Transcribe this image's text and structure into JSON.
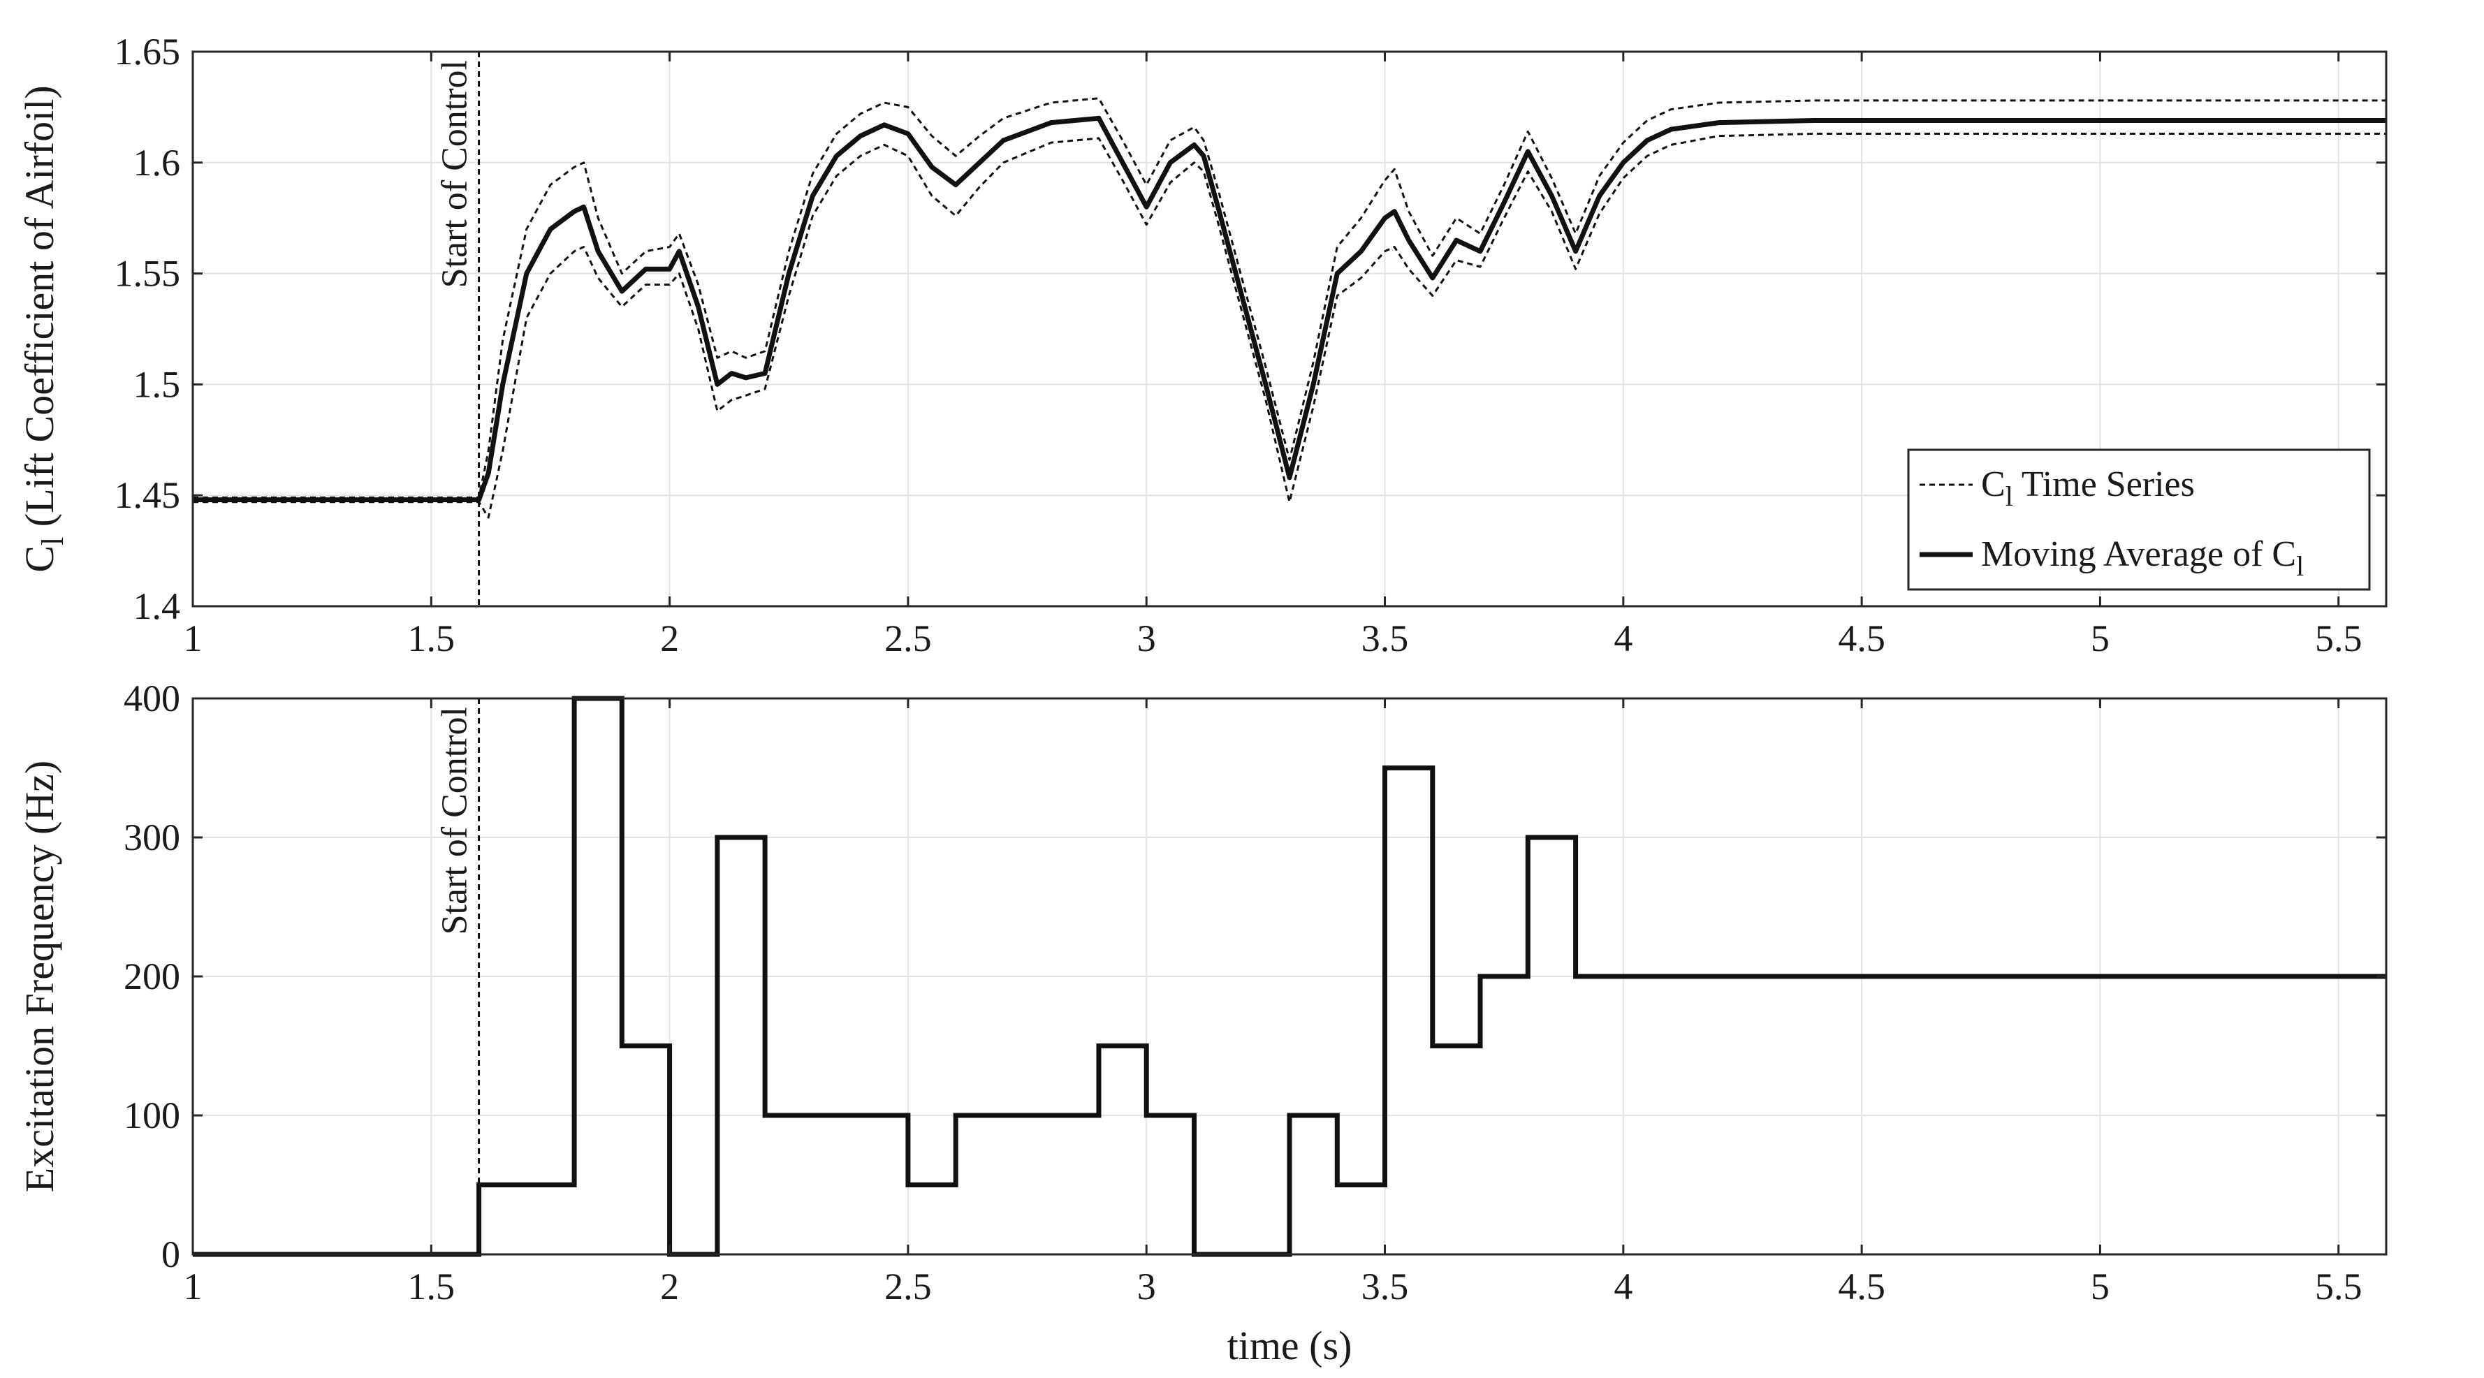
{
  "chart_data": [
    {
      "type": "line",
      "ylabel": "C",
      "ylabel_sub": "l",
      "ylabel_rest": " (Lift Coefficient of Airfoil)",
      "xlim": [
        1,
        5.6
      ],
      "ylim": [
        1.4,
        1.65
      ],
      "grid": true,
      "xticks": [
        1,
        1.5,
        2,
        2.5,
        3,
        3.5,
        4,
        4.5,
        5,
        5.5
      ],
      "yticks": [
        1.4,
        1.45,
        1.5,
        1.55,
        1.6,
        1.65
      ],
      "xtick_labels": [
        "1",
        "1.5",
        "2",
        "2.5",
        "3",
        "3.5",
        "4",
        "4.5",
        "5",
        "5.5"
      ],
      "ytick_labels": [
        "1.4",
        "1.45",
        "1.5",
        "1.55",
        "1.6",
        "1.65"
      ],
      "annotation": {
        "text": "Start of Control",
        "x": 1.6
      },
      "legend": {
        "placement": "bottom-right",
        "entries": [
          {
            "main": "C",
            "sub": "l",
            "rest": " Time Series",
            "style": "dashed"
          },
          {
            "main": "Moving Average of C",
            "sub": "l",
            "rest": "",
            "style": "solid"
          }
        ]
      },
      "series": [
        {
          "name": "Moving Average of C_l",
          "style": "solid",
          "x": [
            1.0,
            1.6,
            1.62,
            1.65,
            1.7,
            1.75,
            1.8,
            1.82,
            1.85,
            1.9,
            1.95,
            2.0,
            2.02,
            2.06,
            2.1,
            2.13,
            2.16,
            2.2,
            2.25,
            2.3,
            2.35,
            2.4,
            2.45,
            2.5,
            2.55,
            2.6,
            2.65,
            2.7,
            2.8,
            2.9,
            2.95,
            3.0,
            3.05,
            3.1,
            3.12,
            3.15,
            3.2,
            3.25,
            3.3,
            3.35,
            3.4,
            3.45,
            3.5,
            3.52,
            3.55,
            3.6,
            3.65,
            3.7,
            3.75,
            3.8,
            3.85,
            3.9,
            3.95,
            4.0,
            4.05,
            4.1,
            4.2,
            4.4,
            4.6,
            5.0,
            5.6
          ],
          "y": [
            1.448,
            1.448,
            1.46,
            1.5,
            1.55,
            1.57,
            1.578,
            1.58,
            1.56,
            1.542,
            1.552,
            1.552,
            1.56,
            1.535,
            1.5,
            1.505,
            1.503,
            1.505,
            1.55,
            1.585,
            1.603,
            1.612,
            1.617,
            1.613,
            1.598,
            1.59,
            1.6,
            1.61,
            1.618,
            1.62,
            1.6,
            1.58,
            1.6,
            1.608,
            1.603,
            1.58,
            1.54,
            1.5,
            1.458,
            1.5,
            1.55,
            1.56,
            1.575,
            1.578,
            1.565,
            1.548,
            1.565,
            1.56,
            1.582,
            1.605,
            1.585,
            1.56,
            1.585,
            1.6,
            1.61,
            1.615,
            1.618,
            1.619,
            1.619,
            1.619,
            1.619
          ]
        },
        {
          "name": "C_l Time Series (upper envelope)",
          "style": "dashed",
          "x": [
            1.0,
            1.6,
            1.62,
            1.65,
            1.7,
            1.75,
            1.8,
            1.82,
            1.85,
            1.9,
            1.95,
            2.0,
            2.02,
            2.06,
            2.1,
            2.13,
            2.16,
            2.2,
            2.25,
            2.3,
            2.35,
            2.4,
            2.45,
            2.5,
            2.55,
            2.6,
            2.65,
            2.7,
            2.8,
            2.9,
            2.95,
            3.0,
            3.05,
            3.1,
            3.12,
            3.15,
            3.2,
            3.25,
            3.3,
            3.35,
            3.4,
            3.45,
            3.5,
            3.52,
            3.55,
            3.6,
            3.65,
            3.7,
            3.75,
            3.8,
            3.85,
            3.9,
            3.95,
            4.0,
            4.05,
            4.1,
            4.2,
            4.4,
            4.6,
            5.0,
            5.6
          ],
          "y": [
            1.449,
            1.449,
            1.47,
            1.52,
            1.57,
            1.59,
            1.598,
            1.6,
            1.575,
            1.55,
            1.56,
            1.562,
            1.568,
            1.545,
            1.512,
            1.515,
            1.512,
            1.515,
            1.56,
            1.595,
            1.613,
            1.622,
            1.627,
            1.625,
            1.612,
            1.603,
            1.612,
            1.62,
            1.627,
            1.629,
            1.61,
            1.59,
            1.61,
            1.616,
            1.61,
            1.588,
            1.548,
            1.508,
            1.466,
            1.51,
            1.562,
            1.575,
            1.592,
            1.597,
            1.578,
            1.558,
            1.575,
            1.568,
            1.59,
            1.614,
            1.593,
            1.568,
            1.594,
            1.609,
            1.619,
            1.624,
            1.627,
            1.628,
            1.628,
            1.628,
            1.628
          ]
        },
        {
          "name": "C_l Time Series (lower envelope)",
          "style": "dashed",
          "x": [
            1.0,
            1.6,
            1.62,
            1.65,
            1.7,
            1.75,
            1.8,
            1.82,
            1.85,
            1.9,
            1.95,
            2.0,
            2.02,
            2.06,
            2.1,
            2.13,
            2.16,
            2.2,
            2.25,
            2.3,
            2.35,
            2.4,
            2.45,
            2.5,
            2.55,
            2.6,
            2.65,
            2.7,
            2.8,
            2.9,
            2.95,
            3.0,
            3.05,
            3.1,
            3.12,
            3.15,
            3.2,
            3.25,
            3.3,
            3.35,
            3.4,
            3.45,
            3.5,
            3.52,
            3.55,
            3.6,
            3.65,
            3.7,
            3.75,
            3.8,
            3.85,
            3.9,
            3.95,
            4.0,
            4.05,
            4.1,
            4.2,
            4.4,
            4.6,
            5.0,
            5.6
          ],
          "y": [
            1.447,
            1.447,
            1.44,
            1.47,
            1.53,
            1.55,
            1.56,
            1.562,
            1.548,
            1.535,
            1.545,
            1.545,
            1.55,
            1.525,
            1.488,
            1.493,
            1.495,
            1.498,
            1.54,
            1.576,
            1.594,
            1.603,
            1.608,
            1.603,
            1.585,
            1.576,
            1.589,
            1.6,
            1.609,
            1.611,
            1.592,
            1.572,
            1.591,
            1.6,
            1.596,
            1.573,
            1.533,
            1.493,
            1.447,
            1.49,
            1.54,
            1.548,
            1.56,
            1.562,
            1.552,
            1.54,
            1.556,
            1.553,
            1.575,
            1.596,
            1.578,
            1.552,
            1.577,
            1.593,
            1.603,
            1.608,
            1.612,
            1.613,
            1.613,
            1.613,
            1.613
          ]
        }
      ]
    },
    {
      "type": "line",
      "ylabel": "Excitation Frequency (Hz)",
      "xlabel": "time (s)",
      "xlim": [
        1,
        5.6
      ],
      "ylim": [
        0,
        400
      ],
      "grid": true,
      "xticks": [
        1,
        1.5,
        2,
        2.5,
        3,
        3.5,
        4,
        4.5,
        5,
        5.5
      ],
      "yticks": [
        0,
        100,
        200,
        300,
        400
      ],
      "xtick_labels": [
        "1",
        "1.5",
        "2",
        "2.5",
        "3",
        "3.5",
        "4",
        "4.5",
        "5",
        "5.5"
      ],
      "ytick_labels": [
        "0",
        "100",
        "200",
        "300",
        "400"
      ],
      "annotation": {
        "text": "Start of Control",
        "x": 1.6
      },
      "series": [
        {
          "style": "step",
          "x": [
            1.0,
            1.6,
            1.6,
            1.8,
            1.8,
            1.9,
            1.9,
            2.0,
            2.0,
            2.1,
            2.1,
            2.2,
            2.2,
            2.5,
            2.5,
            2.6,
            2.6,
            2.9,
            2.9,
            3.0,
            3.0,
            3.1,
            3.1,
            3.3,
            3.3,
            3.4,
            3.4,
            3.5,
            3.5,
            3.6,
            3.6,
            3.7,
            3.7,
            3.8,
            3.8,
            3.9,
            3.9,
            5.6
          ],
          "y": [
            0,
            0,
            50,
            50,
            400,
            400,
            150,
            150,
            0,
            0,
            300,
            300,
            100,
            100,
            50,
            50,
            100,
            100,
            150,
            150,
            100,
            100,
            0,
            0,
            100,
            100,
            50,
            50,
            350,
            350,
            150,
            150,
            200,
            200,
            300,
            300,
            200,
            200
          ]
        }
      ]
    }
  ]
}
